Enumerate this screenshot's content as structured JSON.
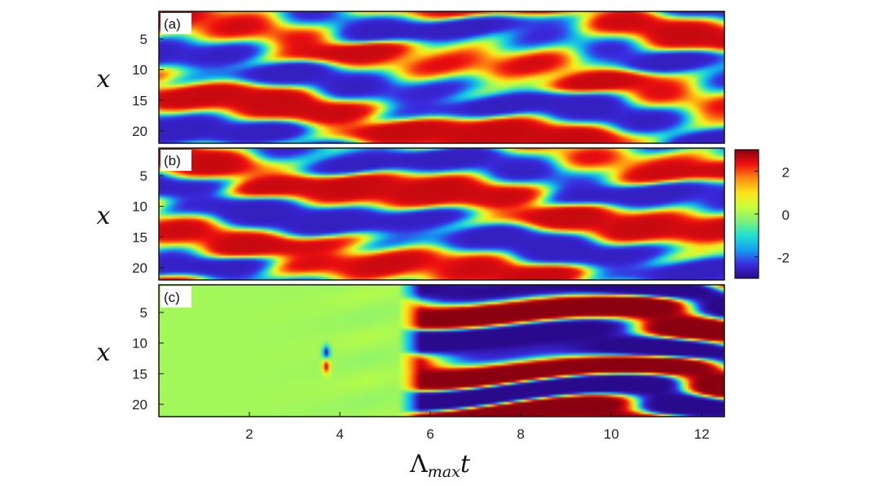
{
  "chart_data": [
    {
      "type": "heatmap",
      "panel_label": "(a)",
      "ylabel": "x",
      "y_ticks": [
        "5",
        "10",
        "15",
        "20"
      ],
      "y_tick_values": [
        5,
        10,
        15,
        20
      ],
      "ylim": [
        22,
        0.5
      ],
      "xlim": [
        0,
        12.5
      ],
      "pattern": "travelling stripes across full time range"
    },
    {
      "type": "heatmap",
      "panel_label": "(b)",
      "ylabel": "x",
      "y_ticks": [
        "5",
        "10",
        "15",
        "20"
      ],
      "y_tick_values": [
        5,
        10,
        15,
        20
      ],
      "ylim": [
        22,
        0.5
      ],
      "xlim": [
        0,
        12.5
      ],
      "pattern": "travelling stripes across full time range"
    },
    {
      "type": "heatmap",
      "panel_label": "(c)",
      "ylabel": "x",
      "y_ticks": [
        "5",
        "10",
        "15",
        "20"
      ],
      "y_tick_values": [
        5,
        10,
        15,
        20
      ],
      "ylim": [
        22,
        0.5
      ],
      "xlim": [
        0,
        12.5
      ],
      "pattern": "near zero until t about 5.3, small dipole near t 3.7, then large-amplitude stripes",
      "xlabel": "Λmaxt",
      "x_ticks": [
        "2",
        "4",
        "6",
        "8",
        "10",
        "12"
      ],
      "x_tick_values": [
        2,
        4,
        6,
        8,
        10,
        12
      ]
    }
  ],
  "colorbar": {
    "ticks": [
      "2",
      "0",
      "-2"
    ],
    "tick_values": [
      2,
      0,
      -2
    ],
    "range": [
      -3,
      3
    ],
    "colormap": [
      "#2a0a8c",
      "#3a2ce0",
      "#14a0f0",
      "#22e0d0",
      "#7ef07a",
      "#c8ff3a",
      "#ffe21a",
      "#ff8a10",
      "#ee1010",
      "#8a0010"
    ]
  },
  "xlabel_main": "Λ",
  "xlabel_sub": "max",
  "xlabel_var": "t"
}
